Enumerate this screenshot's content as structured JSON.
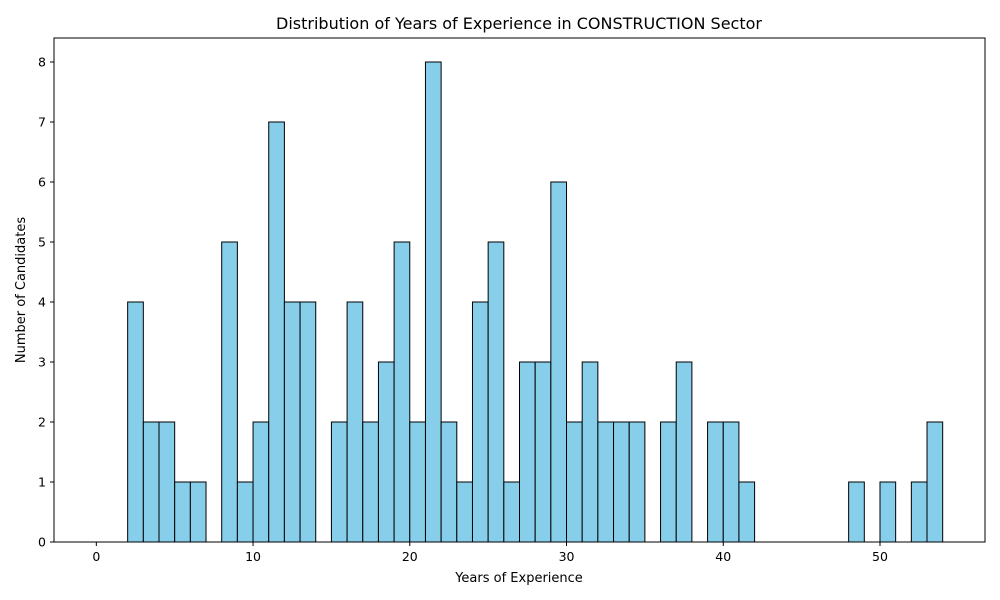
{
  "chart_data": {
    "type": "bar",
    "title": "Distribution of Years of Experience in CONSTRUCTION Sector",
    "xlabel": "Years of Experience",
    "ylabel": "Number of Candidates",
    "xlim": [
      -2.7,
      56.7
    ],
    "ylim": [
      0,
      8.4
    ],
    "x_ticks": [
      0,
      10,
      20,
      30,
      40,
      50
    ],
    "y_ticks": [
      0,
      1,
      2,
      3,
      4,
      5,
      6,
      7,
      8
    ],
    "bin_start": 0,
    "bin_width": 1,
    "values": [
      0,
      0,
      4,
      2,
      2,
      1,
      1,
      0,
      5,
      1,
      2,
      7,
      4,
      4,
      0,
      2,
      4,
      2,
      3,
      5,
      2,
      8,
      2,
      1,
      4,
      5,
      1,
      3,
      3,
      6,
      2,
      3,
      2,
      2,
      2,
      0,
      2,
      3,
      0,
      2,
      2,
      1,
      0,
      0,
      0,
      0,
      0,
      0,
      1,
      0,
      1,
      0,
      1,
      2
    ],
    "bar_color": "#87ceeb",
    "edge_color": "#000000",
    "grid": false,
    "legend": false
  }
}
